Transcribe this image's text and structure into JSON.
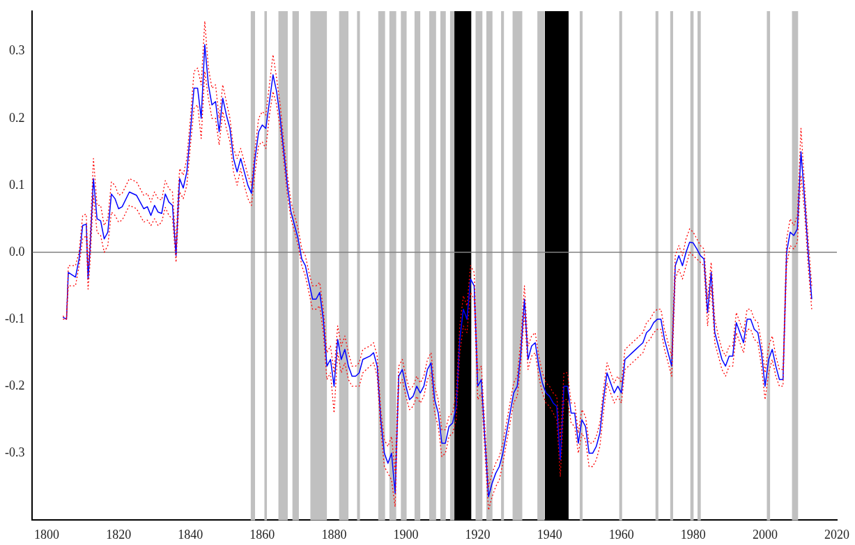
{
  "chart_data": {
    "type": "line",
    "xlim": [
      1796,
      2020
    ],
    "ylim": [
      -0.4,
      0.36
    ],
    "xticks": [
      1800,
      1820,
      1840,
      1860,
      1880,
      1900,
      1920,
      1940,
      1960,
      1980,
      2000,
      2020
    ],
    "yticks": [
      -0.3,
      -0.2,
      -0.1,
      {
        "value": 0,
        "label": "0.0"
      },
      0.1,
      0.2,
      0.3
    ],
    "grid": false,
    "legend": false,
    "marker": "none",
    "ref_lines": [
      {
        "axis": "y",
        "value": 0,
        "color": "#808080"
      }
    ],
    "bands": [
      {
        "axis": "x",
        "from": 1856.8,
        "to": 1858,
        "color": "#c0c0c0"
      },
      {
        "axis": "x",
        "from": 1860.6,
        "to": 1861.3,
        "color": "#c0c0c0"
      },
      {
        "axis": "x",
        "from": 1864.5,
        "to": 1867.1,
        "color": "#c0c0c0"
      },
      {
        "axis": "x",
        "from": 1868.4,
        "to": 1870.2,
        "color": "#c0c0c0"
      },
      {
        "axis": "x",
        "from": 1873.4,
        "to": 1878,
        "color": "#c0c0c0"
      },
      {
        "axis": "x",
        "from": 1881.4,
        "to": 1884,
        "color": "#c0c0c0"
      },
      {
        "axis": "x",
        "from": 1886.4,
        "to": 1887.2,
        "color": "#c0c0c0"
      },
      {
        "axis": "x",
        "from": 1892.3,
        "to": 1894.2,
        "color": "#c0c0c0"
      },
      {
        "axis": "x",
        "from": 1895.4,
        "to": 1897.3,
        "color": "#c0c0c0"
      },
      {
        "axis": "x",
        "from": 1898.6,
        "to": 1900.2,
        "color": "#c0c0c0"
      },
      {
        "axis": "x",
        "from": 1902.4,
        "to": 1904,
        "color": "#c0c0c0"
      },
      {
        "axis": "x",
        "from": 1906.5,
        "to": 1908.4,
        "color": "#c0c0c0"
      },
      {
        "axis": "x",
        "from": 1909.6,
        "to": 1911.1,
        "color": "#c0c0c0"
      },
      {
        "axis": "x",
        "from": 1912.3,
        "to": 1913.5,
        "color": "#c0c0c0"
      },
      {
        "axis": "x",
        "from": 1913.5,
        "to": 1918.2,
        "color": "#000000"
      },
      {
        "axis": "x",
        "from": 1919.4,
        "to": 1921.3,
        "color": "#c0c0c0"
      },
      {
        "axis": "x",
        "from": 1922.4,
        "to": 1924.1,
        "color": "#c0c0c0"
      },
      {
        "axis": "x",
        "from": 1926.5,
        "to": 1927.3,
        "color": "#c0c0c0"
      },
      {
        "axis": "x",
        "from": 1929.7,
        "to": 1932.4,
        "color": "#c0c0c0"
      },
      {
        "axis": "x",
        "from": 1936.6,
        "to": 1938.6,
        "color": "#c0c0c0"
      },
      {
        "axis": "x",
        "from": 1938.7,
        "to": 1945.3,
        "color": "#000000"
      },
      {
        "axis": "x",
        "from": 1948.4,
        "to": 1949.2,
        "color": "#c0c0c0"
      },
      {
        "axis": "x",
        "from": 1959.4,
        "to": 1960.2,
        "color": "#c0c0c0"
      },
      {
        "axis": "x",
        "from": 1969.5,
        "to": 1970.3,
        "color": "#c0c0c0"
      },
      {
        "axis": "x",
        "from": 1973.6,
        "to": 1974.4,
        "color": "#c0c0c0"
      },
      {
        "axis": "x",
        "from": 1979.2,
        "to": 1980.1,
        "color": "#c0c0c0"
      },
      {
        "axis": "x",
        "from": 1981.2,
        "to": 1982.1,
        "color": "#c0c0c0"
      },
      {
        "axis": "x",
        "from": 2000.5,
        "to": 2001.4,
        "color": "#c0c0c0"
      },
      {
        "axis": "x",
        "from": 2007.5,
        "to": 2009.2,
        "color": "#c0c0c0"
      }
    ],
    "x": [
      1804.5,
      1805.5,
      1806,
      1808,
      1809,
      1810,
      1811,
      1811.5,
      1812,
      1813,
      1814,
      1815,
      1816,
      1817,
      1818,
      1819,
      1820,
      1821,
      1823,
      1825,
      1826,
      1827,
      1828,
      1829,
      1830,
      1831,
      1832,
      1833,
      1834,
      1835,
      1836,
      1836.5,
      1837,
      1838,
      1839,
      1840,
      1841,
      1842,
      1843,
      1844,
      1845,
      1846,
      1847,
      1848,
      1849,
      1850,
      1851,
      1852,
      1853,
      1854,
      1855,
      1856,
      1857,
      1858,
      1859,
      1860,
      1861,
      1862,
      1863,
      1864,
      1865,
      1866,
      1867,
      1868,
      1869,
      1870,
      1871,
      1872,
      1873,
      1874,
      1875,
      1876,
      1877,
      1878,
      1879,
      1880,
      1881,
      1882,
      1883,
      1884,
      1885,
      1886,
      1887,
      1888,
      1890,
      1891,
      1892,
      1893,
      1894,
      1895,
      1896,
      1897,
      1898,
      1899,
      1900,
      1901,
      1902,
      1903,
      1904,
      1905,
      1906,
      1907,
      1908,
      1909,
      1910,
      1911,
      1912,
      1913,
      1914,
      1915,
      1916,
      1917,
      1918,
      1919,
      1920,
      1921,
      1922,
      1923,
      1924,
      1925,
      1926,
      1927,
      1928,
      1929,
      1930,
      1931,
      1932,
      1933,
      1934,
      1935,
      1936,
      1937,
      1938,
      1939,
      1940,
      1941,
      1942,
      1943,
      1944,
      1945,
      1946,
      1947,
      1948,
      1949,
      1950,
      1951,
      1952,
      1953,
      1954,
      1955,
      1956,
      1957,
      1958,
      1959,
      1960,
      1961,
      1962,
      1963,
      1964,
      1965,
      1966,
      1967,
      1968,
      1969,
      1970,
      1971,
      1972,
      1973,
      1974,
      1975,
      1976,
      1977,
      1978,
      1979,
      1980,
      1981,
      1982,
      1983,
      1984,
      1985,
      1986,
      1987,
      1988,
      1989,
      1990,
      1991,
      1992,
      1993,
      1994,
      1995,
      1996,
      1997,
      1998,
      1999,
      2000,
      2001,
      2002,
      2003,
      2004,
      2005,
      2006,
      2007,
      2008,
      2009,
      2010,
      2011,
      2012,
      2013
    ],
    "series": [
      {
        "color": "#0000ff",
        "line_style": "solid",
        "values": [
          -0.097,
          -0.1,
          -0.03,
          -0.037,
          -0.01,
          0.04,
          0.042,
          -0.04,
          0.0,
          0.11,
          0.05,
          0.047,
          0.02,
          0.03,
          0.087,
          0.08,
          0.065,
          0.068,
          0.09,
          0.085,
          0.075,
          0.065,
          0.068,
          0.055,
          0.07,
          0.06,
          0.058,
          0.087,
          0.075,
          0.07,
          -0.005,
          0.06,
          0.11,
          0.096,
          0.12,
          0.18,
          0.245,
          0.245,
          0.2,
          0.31,
          0.25,
          0.22,
          0.225,
          0.18,
          0.23,
          0.205,
          0.185,
          0.14,
          0.12,
          0.14,
          0.12,
          0.1,
          0.088,
          0.14,
          0.18,
          0.19,
          0.185,
          0.225,
          0.265,
          0.24,
          0.2,
          0.15,
          0.1,
          0.06,
          0.04,
          0.02,
          -0.01,
          -0.02,
          -0.045,
          -0.07,
          -0.07,
          -0.06,
          -0.1,
          -0.17,
          -0.16,
          -0.2,
          -0.13,
          -0.16,
          -0.145,
          -0.17,
          -0.185,
          -0.185,
          -0.18,
          -0.16,
          -0.155,
          -0.15,
          -0.17,
          -0.25,
          -0.3,
          -0.315,
          -0.3,
          -0.36,
          -0.185,
          -0.175,
          -0.2,
          -0.22,
          -0.215,
          -0.2,
          -0.21,
          -0.2,
          -0.175,
          -0.165,
          -0.22,
          -0.24,
          -0.285,
          -0.285,
          -0.26,
          -0.255,
          -0.23,
          -0.13,
          -0.085,
          -0.1,
          -0.04,
          -0.05,
          -0.2,
          -0.19,
          -0.28,
          -0.365,
          -0.345,
          -0.33,
          -0.32,
          -0.3,
          -0.27,
          -0.24,
          -0.21,
          -0.2,
          -0.15,
          -0.07,
          -0.16,
          -0.14,
          -0.135,
          -0.17,
          -0.195,
          -0.21,
          -0.215,
          -0.225,
          -0.23,
          -0.31,
          -0.2,
          -0.2,
          -0.24,
          -0.24,
          -0.285,
          -0.25,
          -0.26,
          -0.3,
          -0.3,
          -0.29,
          -0.27,
          -0.22,
          -0.18,
          -0.195,
          -0.21,
          -0.2,
          -0.21,
          -0.16,
          -0.155,
          -0.15,
          -0.145,
          -0.14,
          -0.135,
          -0.12,
          -0.115,
          -0.105,
          -0.1,
          -0.1,
          -0.13,
          -0.15,
          -0.17,
          -0.02,
          -0.005,
          -0.02,
          0.0,
          0.015,
          0.014,
          0.005,
          -0.005,
          -0.01,
          -0.09,
          -0.03,
          -0.12,
          -0.14,
          -0.16,
          -0.17,
          -0.155,
          -0.155,
          -0.105,
          -0.12,
          -0.135,
          -0.1,
          -0.1,
          -0.115,
          -0.12,
          -0.15,
          -0.2,
          -0.16,
          -0.145,
          -0.17,
          -0.19,
          -0.19,
          0.0,
          0.03,
          0.025,
          0.035,
          0.15,
          0.08,
          0.0,
          -0.07
        ]
      },
      {
        "color": "#ff0000",
        "line_style": "dotted",
        "values": [
          -0.095,
          -0.1,
          -0.02,
          -0.02,
          0.0,
          0.055,
          0.057,
          -0.02,
          0.015,
          0.14,
          0.07,
          0.07,
          0.04,
          0.05,
          0.105,
          0.1,
          0.085,
          0.088,
          0.11,
          0.105,
          0.095,
          0.085,
          0.088,
          0.075,
          0.09,
          0.08,
          0.078,
          0.107,
          0.095,
          0.09,
          0.01,
          0.08,
          0.125,
          0.115,
          0.14,
          0.2,
          0.27,
          0.275,
          0.25,
          0.345,
          0.275,
          0.245,
          0.25,
          0.2,
          0.25,
          0.225,
          0.2,
          0.155,
          0.14,
          0.155,
          0.135,
          0.115,
          0.1,
          0.155,
          0.2,
          0.21,
          0.205,
          0.25,
          0.295,
          0.26,
          0.22,
          0.165,
          0.115,
          0.075,
          0.055,
          0.035,
          0.005,
          -0.005,
          -0.03,
          -0.05,
          -0.05,
          -0.045,
          -0.085,
          -0.15,
          -0.14,
          -0.18,
          -0.11,
          -0.14,
          -0.125,
          -0.15,
          -0.17,
          -0.17,
          -0.165,
          -0.145,
          -0.14,
          -0.135,
          -0.155,
          -0.235,
          -0.28,
          -0.29,
          -0.275,
          -0.33,
          -0.17,
          -0.16,
          -0.185,
          -0.205,
          -0.2,
          -0.185,
          -0.195,
          -0.185,
          -0.16,
          -0.15,
          -0.2,
          -0.22,
          -0.265,
          -0.265,
          -0.245,
          -0.24,
          -0.21,
          -0.11,
          -0.065,
          -0.08,
          -0.02,
          -0.03,
          -0.18,
          -0.17,
          -0.26,
          -0.35,
          -0.33,
          -0.315,
          -0.305,
          -0.285,
          -0.255,
          -0.225,
          -0.195,
          -0.185,
          -0.13,
          -0.05,
          -0.14,
          -0.125,
          -0.12,
          -0.155,
          -0.18,
          -0.195,
          -0.2,
          -0.21,
          -0.215,
          -0.28,
          -0.18,
          -0.18,
          -0.225,
          -0.225,
          -0.27,
          -0.235,
          -0.245,
          -0.285,
          -0.285,
          -0.275,
          -0.255,
          -0.205,
          -0.165,
          -0.18,
          -0.195,
          -0.185,
          -0.195,
          -0.145,
          -0.14,
          -0.135,
          -0.13,
          -0.125,
          -0.12,
          -0.105,
          -0.1,
          -0.09,
          -0.085,
          -0.085,
          -0.115,
          -0.135,
          -0.155,
          -0.005,
          0.01,
          -0.005,
          0.02,
          0.035,
          0.03,
          0.02,
          0.01,
          0.005,
          -0.07,
          -0.015,
          -0.1,
          -0.125,
          -0.145,
          -0.155,
          -0.14,
          -0.14,
          -0.09,
          -0.105,
          -0.12,
          -0.085,
          -0.085,
          -0.1,
          -0.105,
          -0.135,
          -0.18,
          -0.14,
          -0.125,
          -0.155,
          -0.175,
          -0.175,
          0.02,
          0.05,
          0.04,
          0.055,
          0.185,
          0.1,
          0.02,
          -0.05
        ]
      },
      {
        "color": "#ff0000",
        "line_style": "dotted",
        "values": [
          -0.1,
          -0.1,
          -0.05,
          -0.05,
          -0.02,
          0.02,
          0.025,
          -0.055,
          -0.02,
          0.085,
          0.03,
          0.025,
          0.0,
          0.01,
          0.06,
          0.055,
          0.045,
          0.048,
          0.07,
          0.065,
          0.055,
          0.045,
          0.048,
          0.04,
          0.05,
          0.04,
          0.045,
          0.067,
          0.055,
          0.05,
          -0.015,
          0.04,
          0.09,
          0.08,
          0.1,
          0.16,
          0.215,
          0.22,
          0.17,
          0.27,
          0.23,
          0.2,
          0.2,
          0.16,
          0.21,
          0.185,
          0.165,
          0.12,
          0.1,
          0.125,
          0.1,
          0.08,
          0.07,
          0.12,
          0.16,
          0.165,
          0.155,
          0.205,
          0.24,
          0.22,
          0.185,
          0.135,
          0.085,
          0.05,
          0.03,
          0.01,
          -0.02,
          -0.035,
          -0.06,
          -0.085,
          -0.085,
          -0.08,
          -0.12,
          -0.19,
          -0.18,
          -0.24,
          -0.15,
          -0.18,
          -0.165,
          -0.19,
          -0.2,
          -0.2,
          -0.2,
          -0.18,
          -0.17,
          -0.165,
          -0.185,
          -0.265,
          -0.32,
          -0.33,
          -0.34,
          -0.38,
          -0.2,
          -0.19,
          -0.215,
          -0.235,
          -0.23,
          -0.215,
          -0.225,
          -0.215,
          -0.19,
          -0.18,
          -0.24,
          -0.26,
          -0.305,
          -0.3,
          -0.275,
          -0.27,
          -0.25,
          -0.15,
          -0.11,
          -0.12,
          -0.06,
          -0.07,
          -0.22,
          -0.21,
          -0.3,
          -0.385,
          -0.365,
          -0.35,
          -0.34,
          -0.315,
          -0.285,
          -0.255,
          -0.225,
          -0.215,
          -0.165,
          -0.09,
          -0.175,
          -0.155,
          -0.15,
          -0.185,
          -0.21,
          -0.225,
          -0.23,
          -0.24,
          -0.25,
          -0.335,
          -0.22,
          -0.22,
          -0.255,
          -0.26,
          -0.3,
          -0.27,
          -0.28,
          -0.32,
          -0.32,
          -0.31,
          -0.29,
          -0.24,
          -0.195,
          -0.21,
          -0.225,
          -0.215,
          -0.225,
          -0.175,
          -0.17,
          -0.165,
          -0.16,
          -0.155,
          -0.15,
          -0.135,
          -0.13,
          -0.12,
          -0.115,
          -0.115,
          -0.145,
          -0.165,
          -0.185,
          -0.04,
          -0.025,
          -0.04,
          -0.02,
          0.0,
          -0.005,
          -0.01,
          -0.015,
          -0.02,
          -0.11,
          -0.05,
          -0.135,
          -0.155,
          -0.175,
          -0.185,
          -0.17,
          -0.17,
          -0.12,
          -0.135,
          -0.15,
          -0.115,
          -0.115,
          -0.13,
          -0.135,
          -0.17,
          -0.22,
          -0.18,
          -0.16,
          -0.185,
          -0.2,
          -0.2,
          -0.02,
          0.01,
          0.005,
          0.015,
          0.115,
          0.06,
          -0.02,
          -0.085
        ]
      }
    ]
  }
}
